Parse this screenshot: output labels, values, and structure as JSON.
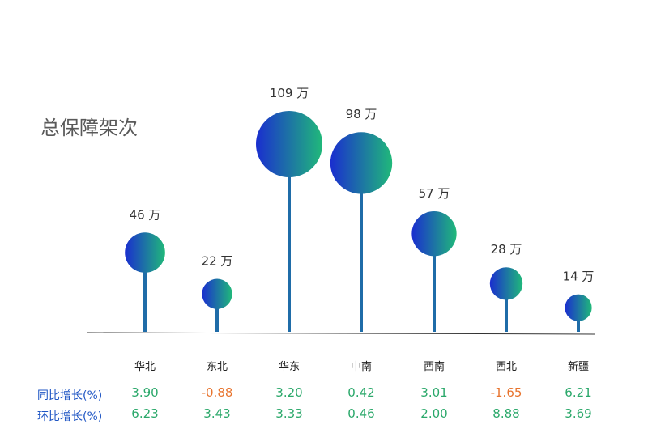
{
  "title": "总保障架次",
  "colors": {
    "pos": "#2aa86a",
    "neg": "#e8742e",
    "label": "#1f56c4",
    "stem": "#1f6ca8",
    "grad_start": "#1a2ecf",
    "grad_end": "#20b97a"
  },
  "chart_data": {
    "type": "lollipop",
    "unit": "万",
    "categories": [
      "华北",
      "东北",
      "华东",
      "中南",
      "西南",
      "西北",
      "新疆"
    ],
    "values": [
      46,
      22,
      109,
      98,
      57,
      28,
      14
    ],
    "value_labels": [
      "46 万",
      "22 万",
      "109 万",
      "98 万",
      "57 万",
      "28 万",
      "14 万"
    ],
    "grid": false
  },
  "table": {
    "rows": [
      {
        "label": "同比增长(%)",
        "values": [
          "3.90",
          "-0.88",
          "3.20",
          "0.42",
          "3.01",
          "-1.65",
          "6.21"
        ]
      },
      {
        "label": "环比增长(%)",
        "values": [
          "6.23",
          "3.43",
          "3.33",
          "0.46",
          "2.00",
          "8.88",
          "3.69"
        ]
      }
    ]
  }
}
